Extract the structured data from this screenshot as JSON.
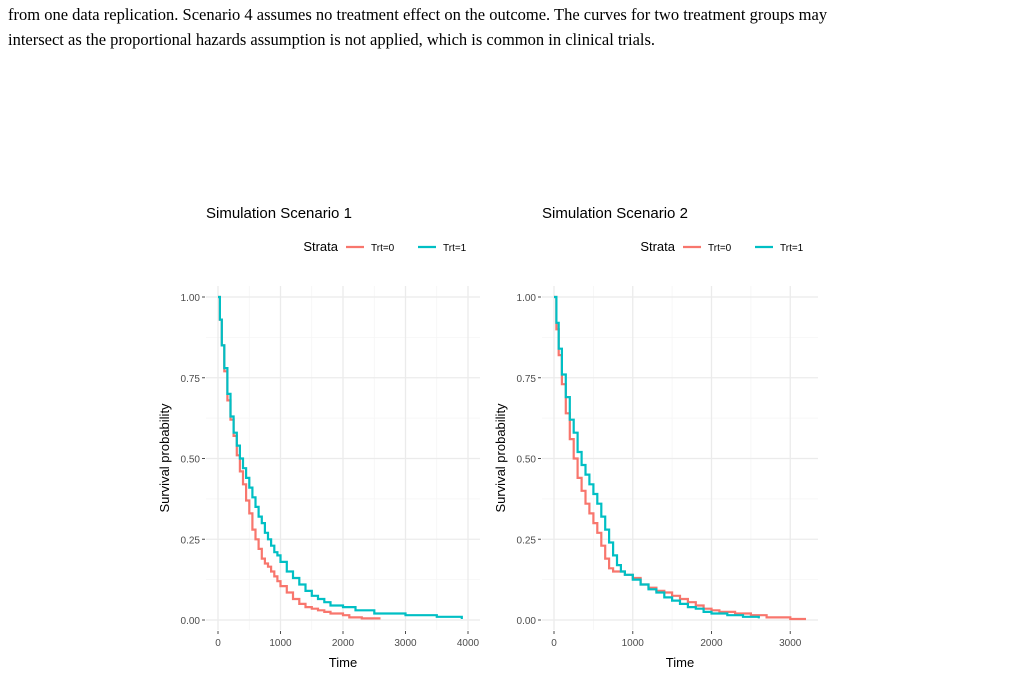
{
  "caption": {
    "line1": "from one data replication. Scenario 4 assumes no treatment effect on the outcome. The curves for two treatment groups may",
    "line2": "intersect as the proportional hazards assumption is not applied, which is common in clinical trials."
  },
  "colors": {
    "trt0": "#F8766D",
    "trt1": "#00BFC4",
    "grid_major": "#EBEBEB",
    "grid_minor": "#F5F5F5",
    "tick": "#4D4D4D"
  },
  "chart_data": [
    {
      "type": "line",
      "step": true,
      "title": "Simulation Scenario 1",
      "xlabel": "Time",
      "ylabel": "Survival probability",
      "xlim": [
        0,
        4000
      ],
      "ylim": [
        0,
        1
      ],
      "xticks": [
        0,
        1000,
        2000,
        3000,
        4000
      ],
      "yticks": [
        "0.00",
        "0.25",
        "0.50",
        "0.75",
        "1.00"
      ],
      "grid": true,
      "legend": {
        "title": "Strata",
        "position": "top"
      },
      "series": [
        {
          "name": "Trt=0",
          "color": "#F8766D",
          "x": [
            0,
            30,
            60,
            100,
            150,
            200,
            250,
            300,
            350,
            400,
            450,
            500,
            550,
            600,
            650,
            700,
            750,
            800,
            850,
            900,
            950,
            1000,
            1100,
            1200,
            1300,
            1400,
            1500,
            1600,
            1700,
            1800,
            2000,
            2100,
            2300,
            2600
          ],
          "y": [
            1.0,
            0.93,
            0.85,
            0.77,
            0.68,
            0.62,
            0.57,
            0.51,
            0.46,
            0.42,
            0.37,
            0.33,
            0.28,
            0.25,
            0.22,
            0.19,
            0.175,
            0.165,
            0.15,
            0.135,
            0.12,
            0.105,
            0.085,
            0.065,
            0.05,
            0.04,
            0.035,
            0.03,
            0.025,
            0.02,
            0.015,
            0.008,
            0.005,
            0.005
          ]
        },
        {
          "name": "Trt=1",
          "color": "#00BFC4",
          "x": [
            0,
            30,
            60,
            100,
            150,
            200,
            250,
            300,
            350,
            400,
            450,
            500,
            550,
            600,
            650,
            700,
            750,
            800,
            850,
            900,
            950,
            1000,
            1100,
            1200,
            1300,
            1400,
            1500,
            1600,
            1700,
            1800,
            2000,
            2200,
            2500,
            3000,
            3500,
            3900
          ],
          "y": [
            1.0,
            0.93,
            0.85,
            0.78,
            0.7,
            0.63,
            0.58,
            0.54,
            0.5,
            0.47,
            0.44,
            0.41,
            0.38,
            0.35,
            0.32,
            0.3,
            0.27,
            0.25,
            0.23,
            0.21,
            0.2,
            0.18,
            0.15,
            0.13,
            0.11,
            0.09,
            0.075,
            0.065,
            0.055,
            0.045,
            0.04,
            0.03,
            0.02,
            0.015,
            0.01,
            0.003
          ]
        }
      ]
    },
    {
      "type": "line",
      "step": true,
      "title": "Simulation Scenario 2",
      "xlabel": "Time",
      "ylabel": "Survival probability",
      "xlim": [
        0,
        3200
      ],
      "ylim": [
        0,
        1
      ],
      "xticks": [
        0,
        1000,
        2000,
        3000
      ],
      "yticks": [
        "0.00",
        "0.25",
        "0.50",
        "0.75",
        "1.00"
      ],
      "grid": true,
      "legend": {
        "title": "Strata",
        "position": "top"
      },
      "series": [
        {
          "name": "Trt=0",
          "color": "#F8766D",
          "x": [
            0,
            30,
            60,
            100,
            150,
            200,
            250,
            300,
            350,
            400,
            450,
            500,
            550,
            600,
            650,
            700,
            750,
            800,
            900,
            1000,
            1100,
            1200,
            1300,
            1400,
            1500,
            1600,
            1700,
            1800,
            1900,
            2000,
            2100,
            2300,
            2500,
            2700,
            3000,
            3200
          ],
          "y": [
            1.0,
            0.9,
            0.82,
            0.73,
            0.64,
            0.56,
            0.5,
            0.44,
            0.4,
            0.36,
            0.33,
            0.3,
            0.27,
            0.23,
            0.19,
            0.16,
            0.15,
            0.15,
            0.14,
            0.13,
            0.11,
            0.1,
            0.09,
            0.085,
            0.075,
            0.065,
            0.055,
            0.045,
            0.035,
            0.03,
            0.025,
            0.02,
            0.015,
            0.008,
            0.003,
            0.003
          ]
        },
        {
          "name": "Trt=1",
          "color": "#00BFC4",
          "x": [
            0,
            30,
            60,
            100,
            150,
            200,
            250,
            300,
            350,
            400,
            450,
            500,
            550,
            600,
            650,
            700,
            750,
            800,
            850,
            900,
            1000,
            1100,
            1200,
            1300,
            1400,
            1500,
            1600,
            1700,
            1800,
            1900,
            2000,
            2200,
            2400,
            2600
          ],
          "y": [
            1.0,
            0.92,
            0.84,
            0.76,
            0.69,
            0.62,
            0.58,
            0.52,
            0.48,
            0.45,
            0.42,
            0.39,
            0.36,
            0.32,
            0.28,
            0.24,
            0.2,
            0.17,
            0.15,
            0.14,
            0.125,
            0.11,
            0.095,
            0.085,
            0.07,
            0.06,
            0.05,
            0.04,
            0.035,
            0.025,
            0.02,
            0.015,
            0.01,
            0.005
          ]
        }
      ]
    }
  ]
}
